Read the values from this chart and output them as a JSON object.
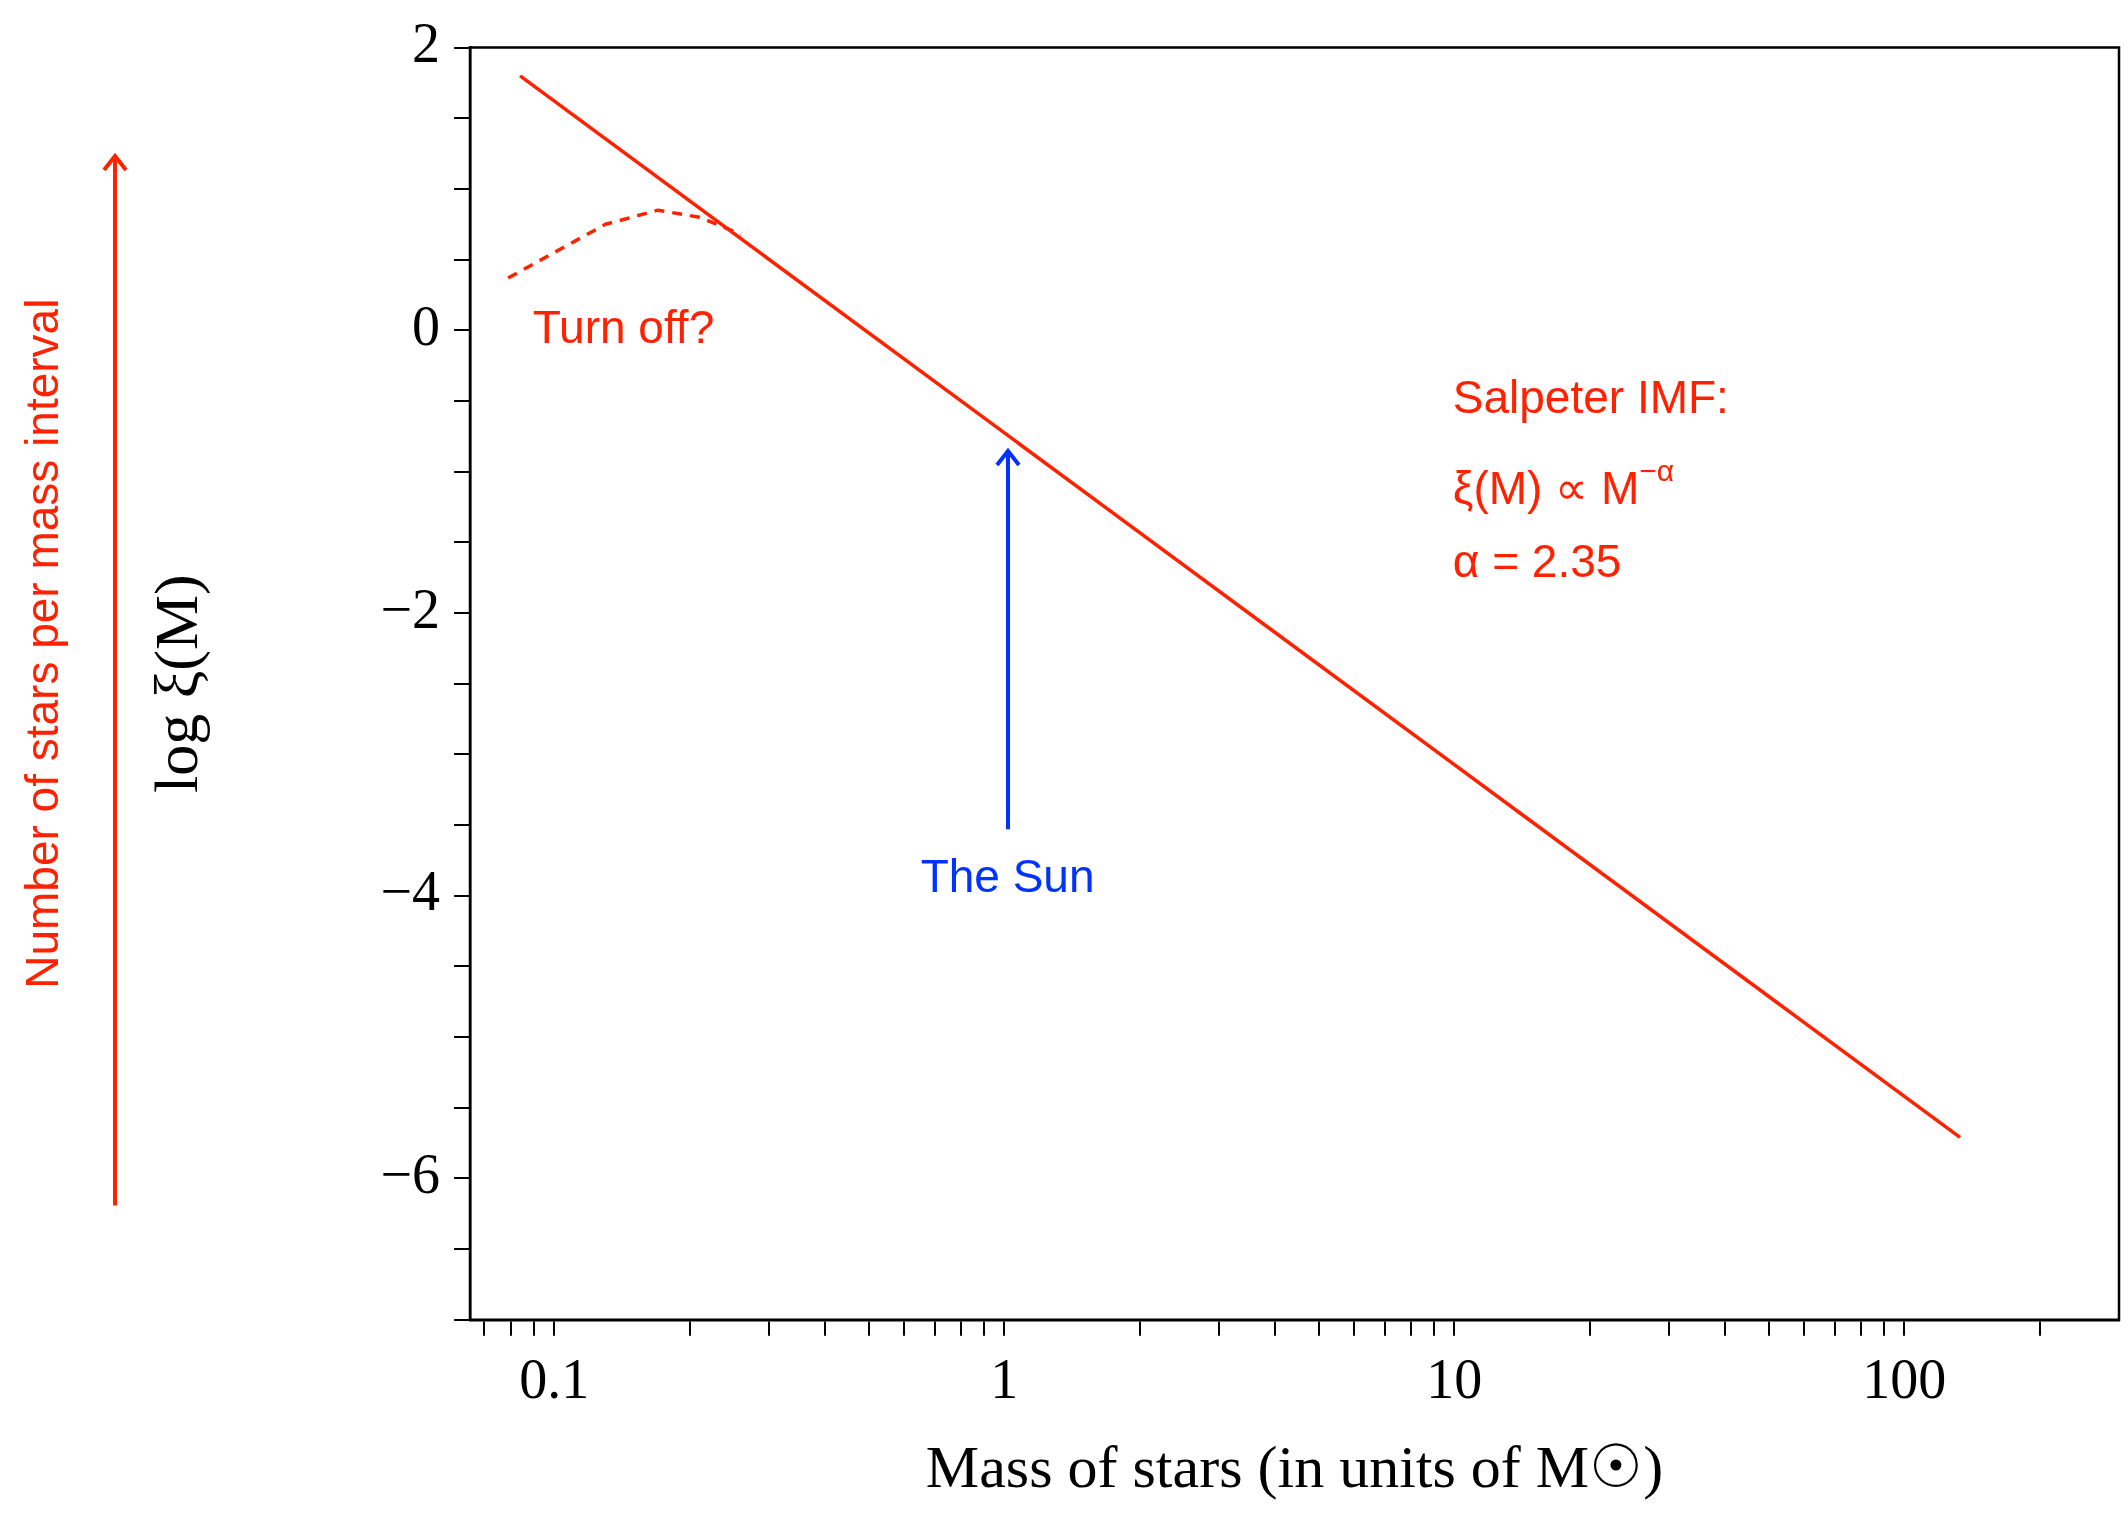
{
  "chart_data": {
    "type": "line",
    "xlabel": "Mass of stars (in units of M☉)",
    "ylabel": "log ξ(M)",
    "log": "x",
    "xlim": [
      0.065,
      300
    ],
    "xticks": [
      {
        "value": 0.07,
        "label": null
      },
      {
        "value": 0.08,
        "label": null
      },
      {
        "value": 0.09,
        "label": null
      },
      {
        "value": 0.1,
        "label": "0.1"
      },
      {
        "value": 0.2,
        "label": null
      },
      {
        "value": 0.3,
        "label": null
      },
      {
        "value": 0.4,
        "label": null
      },
      {
        "value": 0.5,
        "label": null
      },
      {
        "value": 0.6,
        "label": null
      },
      {
        "value": 0.7,
        "label": null
      },
      {
        "value": 0.8,
        "label": null
      },
      {
        "value": 0.9,
        "label": null
      },
      1,
      {
        "value": 2,
        "label": null
      },
      {
        "value": 3,
        "label": null
      },
      {
        "value": 4,
        "label": null
      },
      {
        "value": 5,
        "label": null
      },
      {
        "value": 6,
        "label": null
      },
      {
        "value": 7,
        "label": null
      },
      {
        "value": 8,
        "label": null
      },
      {
        "value": 9,
        "label": null
      },
      10,
      {
        "value": 20,
        "label": null
      },
      {
        "value": 30,
        "label": null
      },
      {
        "value": 40,
        "label": null
      },
      {
        "value": 50,
        "label": null
      },
      {
        "value": 60,
        "label": null
      },
      {
        "value": 70,
        "label": null
      },
      {
        "value": 80,
        "label": null
      },
      {
        "value": 90,
        "label": null
      },
      100,
      {
        "value": 200,
        "label": null
      }
    ],
    "ylim": [
      -7,
      2
    ],
    "yticks": [
      {
        "value": -7,
        "label": null
      },
      {
        "value": -6.5,
        "label": null
      },
      {
        "value": -6,
        "label": "−6"
      },
      {
        "value": -5.5,
        "label": null
      },
      {
        "value": -5,
        "label": null
      },
      {
        "value": -4.5,
        "label": null
      },
      {
        "value": -4,
        "label": "−4"
      },
      {
        "value": -3.5,
        "label": null
      },
      {
        "value": -3,
        "label": null
      },
      {
        "value": -2.5,
        "label": null
      },
      {
        "value": -2,
        "label": "−2"
      },
      {
        "value": -1.5,
        "label": null
      },
      {
        "value": -1,
        "label": null
      },
      {
        "value": -0.5,
        "label": null
      },
      0,
      {
        "value": 0.5,
        "label": null
      },
      {
        "value": 1,
        "label": null
      },
      {
        "value": 1.5,
        "label": null
      },
      2
    ],
    "grid": false,
    "legend": false,
    "marker": "none",
    "series": [
      {
        "color": "#ff2200",
        "line_style": "solid",
        "x": [
          0.084,
          133
        ],
        "values": [
          1.8,
          -5.71
        ]
      },
      {
        "color": "#ff2200",
        "line_style": "dashed",
        "x": [
          0.079,
          0.1,
          0.13,
          0.17,
          0.21,
          0.26
        ],
        "values": [
          0.37,
          0.55,
          0.75,
          0.85,
          0.8,
          0.68
        ]
      }
    ],
    "annotations": [
      "Number of stars per mass interval",
      "Turn off?",
      "The Sun",
      "Salpeter IMF:",
      "ξ(M) ∝ M$^{−α}$",
      "α = 2.35"
    ]
  }
}
